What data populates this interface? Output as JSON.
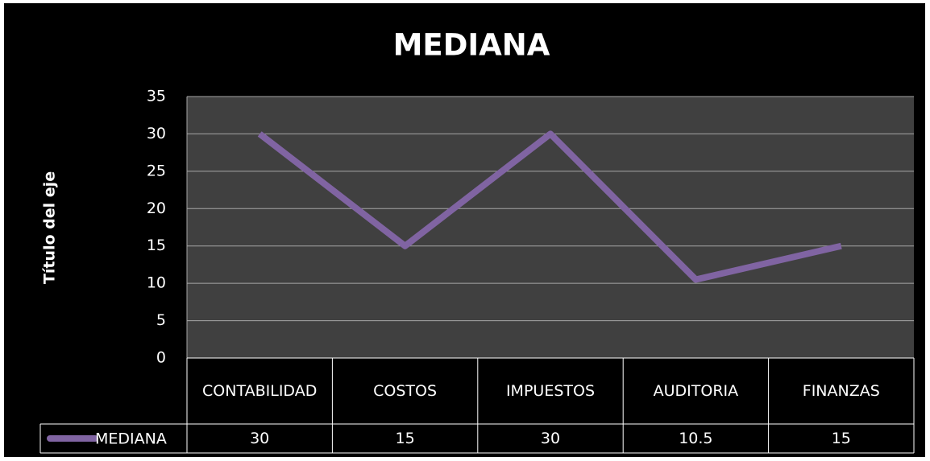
{
  "chart_data": {
    "type": "line",
    "title": "MEDIANA",
    "y_label": "Título del eje",
    "categories": [
      "CONTABILIDAD",
      "COSTOS",
      "IMPUESTOS",
      "AUDITORIA",
      "FINANZAS"
    ],
    "series": [
      {
        "name": "MEDIANA",
        "color": "#8064a2",
        "values": [
          30,
          15,
          30,
          10.5,
          15
        ]
      }
    ],
    "ylim": [
      0,
      35
    ],
    "yticks": [
      0,
      5,
      10,
      15,
      20,
      25,
      30,
      35
    ],
    "grid": true,
    "data_table": true
  }
}
